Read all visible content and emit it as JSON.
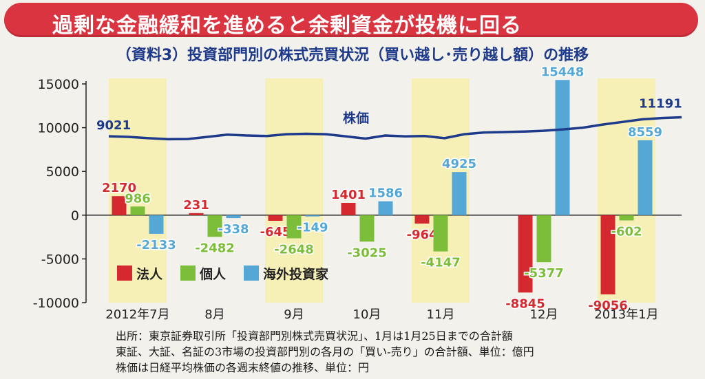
{
  "header": {
    "banner_title": "過剰な金融緩和を進めると余剰資金が投機に回る",
    "chart_title": "（資料3）投資部門別の株式売買状況（買い越し･売り越し額）の推移"
  },
  "chart_data": {
    "type": "bar",
    "categories": [
      "2012年7月",
      "8月",
      "9月",
      "10月",
      "11月",
      "12月",
      "2013年1月"
    ],
    "ylim": [
      -10000,
      15000
    ],
    "yticks": [
      "15000",
      "10000",
      "5000",
      "0",
      "-5000",
      "-10000"
    ],
    "ytick_values": [
      15000,
      10000,
      5000,
      0,
      -5000,
      -10000
    ],
    "highlight_months": [
      0,
      2,
      4,
      6
    ],
    "series": [
      {
        "name": "法人",
        "color": "#d42a2f",
        "values": [
          2170,
          231,
          -645,
          1401,
          -964,
          -8845,
          -9056
        ],
        "labels": [
          "2170",
          "231",
          "-645",
          "1401",
          "-964",
          "-8845",
          "-9056"
        ]
      },
      {
        "name": "個人",
        "color": "#7cbd3a",
        "values": [
          986,
          -2482,
          -2648,
          -3025,
          -4147,
          -5377,
          -602
        ],
        "labels": [
          "986",
          "-2482",
          "-2648",
          "-3025",
          "-4147",
          "-5377",
          "-602"
        ]
      },
      {
        "name": "海外投資家",
        "color": "#55a8d6",
        "values": [
          -2133,
          -338,
          -149,
          1586,
          4925,
          15448,
          8559
        ],
        "labels": [
          "-2133",
          "-338",
          "-149",
          "1586",
          "4925",
          "15448",
          "8559"
        ]
      }
    ],
    "stock_price": {
      "name": "株価",
      "color": "#1e3a8a",
      "values": [
        9021,
        8950,
        8800,
        8680,
        8700,
        8950,
        9200,
        9100,
        9050,
        9250,
        9300,
        9250,
        9000,
        8750,
        9100,
        9000,
        9050,
        8800,
        9250,
        9450,
        9500,
        9550,
        9650,
        9800,
        10000,
        10350,
        10650,
        10950,
        11100,
        11191
      ],
      "start_label": "9021",
      "end_label": "11191"
    }
  },
  "notes": {
    "line1": "出所：東京証券取引所「投資部門別株式売買状況」、1月は1月25日までの合計額",
    "line2": "東証、大証、名証の3市場の投資部門別の各月の「買い‐売り」の合計額、単位：億円",
    "line3": "株価は日経平均株価の各週末終値の推移、単位：円"
  }
}
